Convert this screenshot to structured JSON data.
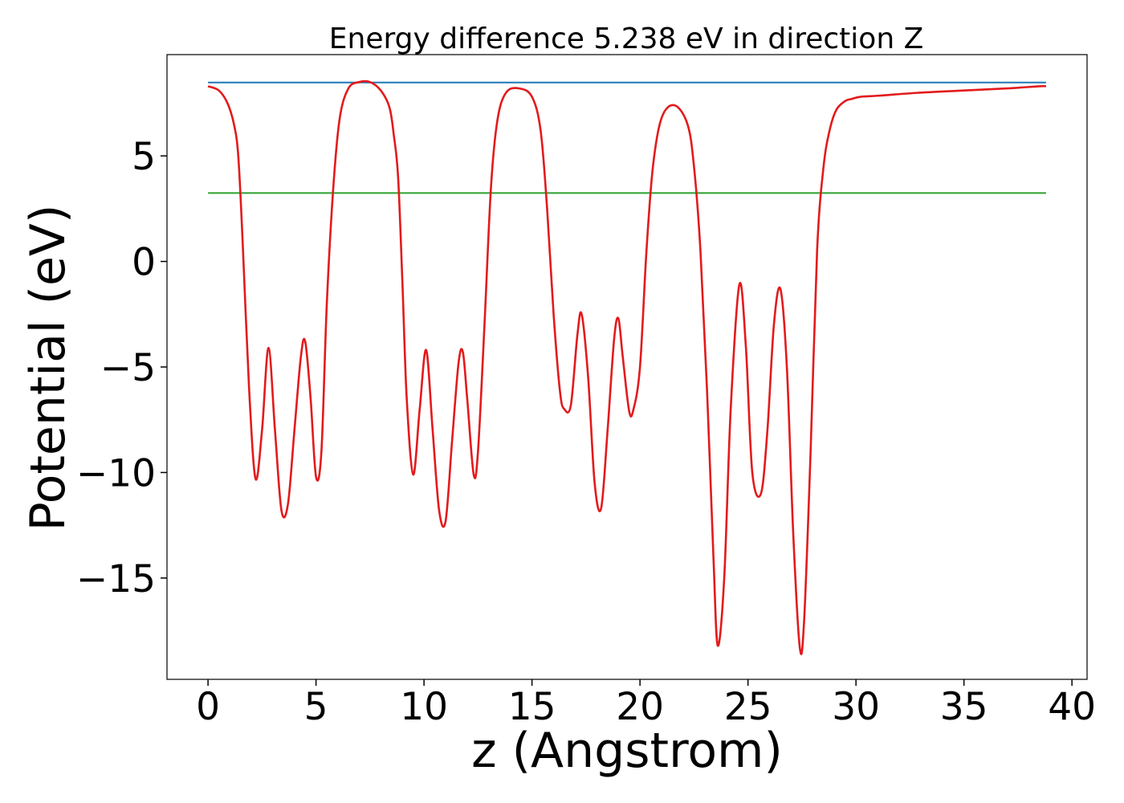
{
  "chart_data": {
    "type": "line",
    "title": "Energy difference 5.238 eV in direction Z",
    "xlabel": "z (Angstrom)",
    "ylabel": "Potential (eV)",
    "xlim": [
      -1.9,
      40.7
    ],
    "ylim": [
      -19.8,
      9.8
    ],
    "xticks": [
      0,
      5,
      10,
      15,
      20,
      25,
      30,
      35,
      40
    ],
    "xtick_labels": [
      "0",
      "5",
      "10",
      "15",
      "20",
      "25",
      "30",
      "35",
      "40"
    ],
    "yticks": [
      5,
      0,
      -5,
      -10,
      -15
    ],
    "ytick_labels": [
      "5",
      "0",
      "−5",
      "−10",
      "−15"
    ],
    "grid": false,
    "hlines": [
      {
        "y": 8.48,
        "x_range": [
          0,
          38.8
        ],
        "color": "#1f77b4"
      },
      {
        "y": 3.24,
        "x_range": [
          0,
          38.8
        ],
        "color": "#2ca02c"
      }
    ],
    "series": [
      {
        "color": "#e31a1c",
        "x": [
          0,
          0.5,
          0.9,
          1.2,
          1.4,
          1.6,
          1.9,
          2.2,
          2.5,
          2.8,
          3.1,
          3.4,
          3.7,
          4.0,
          4.3,
          4.5,
          4.75,
          5.0,
          5.25,
          5.5,
          5.8,
          6.1,
          6.5,
          7.0,
          7.5,
          8.0,
          8.4,
          8.6,
          8.8,
          9.0,
          9.2,
          9.5,
          9.8,
          10.1,
          10.4,
          10.7,
          11.0,
          11.3,
          11.6,
          11.8,
          12.0,
          12.3,
          12.5,
          12.8,
          13.1,
          13.4,
          13.8,
          14.4,
          15.0,
          15.4,
          15.7,
          16.0,
          16.3,
          16.5,
          16.8,
          17.1,
          17.3,
          17.6,
          17.9,
          18.2,
          18.5,
          18.8,
          19.0,
          19.2,
          19.5,
          19.7,
          20.0,
          20.3,
          20.6,
          21.0,
          21.6,
          22.2,
          22.5,
          22.8,
          23.1,
          23.4,
          23.6,
          23.9,
          24.2,
          24.6,
          24.9,
          25.2,
          25.6,
          25.9,
          26.2,
          26.5,
          26.8,
          27.1,
          27.4,
          27.6,
          27.9,
          28.2,
          28.5,
          28.8,
          29.1,
          29.5,
          29.8,
          30.2,
          31.0,
          33.0,
          35.0,
          37.0,
          38.5,
          38.8
        ],
        "y": [
          8.3,
          8.1,
          7.5,
          6.5,
          5.0,
          1.0,
          -6.0,
          -10.3,
          -8.0,
          -4.1,
          -8.0,
          -11.8,
          -11.5,
          -8.0,
          -4.5,
          -3.8,
          -6.5,
          -10.2,
          -9.0,
          -2.0,
          3.5,
          6.8,
          8.2,
          8.5,
          8.5,
          8.1,
          7.3,
          6.0,
          4.0,
          -1.0,
          -6.5,
          -10.1,
          -7.0,
          -4.2,
          -8.0,
          -11.8,
          -12.3,
          -8.5,
          -4.8,
          -4.3,
          -6.5,
          -10.1,
          -9.0,
          -3.0,
          3.5,
          6.7,
          8.0,
          8.2,
          7.8,
          6.2,
          2.5,
          -2.5,
          -6.2,
          -7.0,
          -6.8,
          -3.5,
          -2.5,
          -5.5,
          -10.5,
          -11.7,
          -8.0,
          -3.7,
          -2.7,
          -4.5,
          -7.1,
          -7.0,
          -5.0,
          0.5,
          4.5,
          6.8,
          7.4,
          6.5,
          4.5,
          0.5,
          -6.0,
          -14.0,
          -18.2,
          -15.0,
          -7.0,
          -1.1,
          -4.0,
          -10.0,
          -11.0,
          -8.0,
          -3.0,
          -1.3,
          -5.0,
          -13.0,
          -18.3,
          -17.0,
          -9.0,
          0.5,
          4.5,
          6.3,
          7.2,
          7.6,
          7.7,
          7.8,
          7.85,
          8.0,
          8.1,
          8.2,
          8.3,
          8.3
        ]
      }
    ]
  }
}
